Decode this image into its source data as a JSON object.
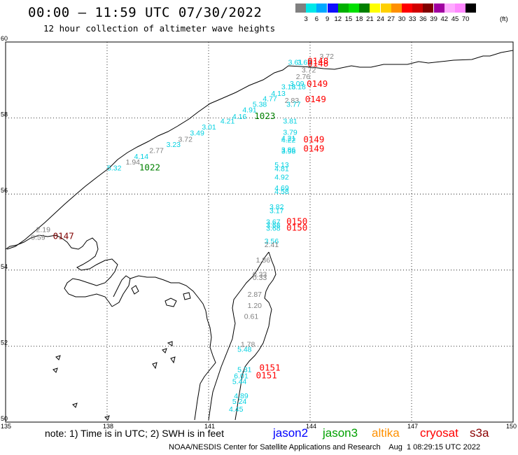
{
  "header": {
    "title": "00:00 – 11:59 UTC 07/30/2022",
    "subtitle": "12 hour collection of altimeter wave heights"
  },
  "legend": {
    "colors": [
      "#808080",
      "#00e8e8",
      "#00a8ff",
      "#1010ff",
      "#00b000",
      "#00e000",
      "#008000",
      "#ffff00",
      "#ffd000",
      "#ff9000",
      "#ff0000",
      "#d00000",
      "#800000",
      "#a000a0",
      "#ffaaff",
      "#ff88ff",
      "#000000"
    ],
    "ticks": [
      "3",
      "6",
      "9",
      "12",
      "15",
      "18",
      "21",
      "24",
      "27",
      "30",
      "33",
      "36",
      "39",
      "42",
      "45",
      "70"
    ],
    "unit": "(ft)"
  },
  "axes": {
    "lat_labels": [
      "60",
      "58",
      "56",
      "54",
      "52",
      "50"
    ],
    "lon_labels": [
      "135",
      "138",
      "141",
      "144",
      "147",
      "150"
    ]
  },
  "observations": [
    {
      "text": "3.72",
      "color": "#808080",
      "lon": 144.28,
      "lat": 59.56
    },
    {
      "text": "3.61",
      "color": "#00d0e0",
      "lon": 143.35,
      "lat": 59.4
    },
    {
      "text": "3.69",
      "color": "#00d0e0",
      "lon": 143.62,
      "lat": 59.4
    },
    {
      "text": "0148",
      "color": "#ff0000",
      "lon": 143.92,
      "lat": 59.42
    },
    {
      "text": "0148",
      "color": "#ff0000",
      "lon": 143.92,
      "lat": 59.36
    },
    {
      "text": "3.72",
      "color": "#808080",
      "lon": 143.75,
      "lat": 59.2
    },
    {
      "text": "2.76",
      "color": "#808080",
      "lon": 143.58,
      "lat": 59.02
    },
    {
      "text": "3.09",
      "color": "#00d0e0",
      "lon": 143.4,
      "lat": 58.84
    },
    {
      "text": "3.18",
      "color": "#00d0e0",
      "lon": 143.15,
      "lat": 58.76
    },
    {
      "text": "3.18",
      "color": "#00d0e0",
      "lon": 143.45,
      "lat": 58.76
    },
    {
      "text": "0149",
      "color": "#ff0000",
      "lon": 143.9,
      "lat": 58.82
    },
    {
      "text": "4.13",
      "color": "#00d0e0",
      "lon": 142.85,
      "lat": 58.58
    },
    {
      "text": "4.77",
      "color": "#00d0e0",
      "lon": 142.6,
      "lat": 58.44
    },
    {
      "text": "2.83",
      "color": "#808080",
      "lon": 143.25,
      "lat": 58.4
    },
    {
      "text": "0149",
      "color": "#ff0000",
      "lon": 143.85,
      "lat": 58.42
    },
    {
      "text": "3.77",
      "color": "#00d0e0",
      "lon": 143.3,
      "lat": 58.3
    },
    {
      "text": "5.38",
      "color": "#00d0e0",
      "lon": 142.3,
      "lat": 58.3
    },
    {
      "text": "4.91",
      "color": "#00d0e0",
      "lon": 142.0,
      "lat": 58.15
    },
    {
      "text": "1023",
      "color": "#008000",
      "lon": 142.35,
      "lat": 57.97
    },
    {
      "text": "4.16",
      "color": "#00d0e0",
      "lon": 141.7,
      "lat": 57.97
    },
    {
      "text": "4.21",
      "color": "#00d0e0",
      "lon": 141.35,
      "lat": 57.85
    },
    {
      "text": "3.01",
      "color": "#00d0e0",
      "lon": 140.8,
      "lat": 57.7
    },
    {
      "text": "3.81",
      "color": "#00d0e0",
      "lon": 143.2,
      "lat": 57.85
    },
    {
      "text": "3.49",
      "color": "#00d0e0",
      "lon": 140.45,
      "lat": 57.54
    },
    {
      "text": "3.79",
      "color": "#00d0e0",
      "lon": 143.2,
      "lat": 57.56
    },
    {
      "text": "3.72",
      "color": "#808080",
      "lon": 140.1,
      "lat": 57.38
    },
    {
      "text": "4.21",
      "color": "#00d0e0",
      "lon": 143.15,
      "lat": 57.4
    },
    {
      "text": "4.22",
      "color": "#00d0e0",
      "lon": 143.15,
      "lat": 57.36
    },
    {
      "text": "0149",
      "color": "#ff0000",
      "lon": 143.8,
      "lat": 57.36
    },
    {
      "text": "3.23",
      "color": "#00d0e0",
      "lon": 139.75,
      "lat": 57.24
    },
    {
      "text": "2.77",
      "color": "#808080",
      "lon": 139.25,
      "lat": 57.08
    },
    {
      "text": "3.86",
      "color": "#00d0e0",
      "lon": 143.15,
      "lat": 57.1
    },
    {
      "text": "3.98",
      "color": "#00d0e0",
      "lon": 143.15,
      "lat": 57.06
    },
    {
      "text": "0149",
      "color": "#ff0000",
      "lon": 143.8,
      "lat": 57.12
    },
    {
      "text": "4.14",
      "color": "#00d0e0",
      "lon": 138.8,
      "lat": 56.92
    },
    {
      "text": "1.94",
      "color": "#808080",
      "lon": 138.55,
      "lat": 56.78
    },
    {
      "text": "5.13",
      "color": "#00d0e0",
      "lon": 142.95,
      "lat": 56.7
    },
    {
      "text": "5.32",
      "color": "#00d0e0",
      "lon": 138.0,
      "lat": 56.62
    },
    {
      "text": "1022",
      "color": "#008000",
      "lon": 138.95,
      "lat": 56.62
    },
    {
      "text": "4.81",
      "color": "#00d0e0",
      "lon": 142.95,
      "lat": 56.6
    },
    {
      "text": "4.92",
      "color": "#00d0e0",
      "lon": 142.95,
      "lat": 56.38
    },
    {
      "text": "4.69",
      "color": "#00d0e0",
      "lon": 142.95,
      "lat": 56.1
    },
    {
      "text": "4.58",
      "color": "#00d0e0",
      "lon": 142.95,
      "lat": 56.0
    },
    {
      "text": "3.82",
      "color": "#00d0e0",
      "lon": 142.8,
      "lat": 55.6
    },
    {
      "text": "3.17",
      "color": "#00d0e0",
      "lon": 142.8,
      "lat": 55.5
    },
    {
      "text": "3.67",
      "color": "#00d0e0",
      "lon": 142.7,
      "lat": 55.2
    },
    {
      "text": "3.68",
      "color": "#00d0e0",
      "lon": 142.7,
      "lat": 55.12
    },
    {
      "text": "3.68",
      "color": "#00d0e0",
      "lon": 142.7,
      "lat": 55.04
    },
    {
      "text": "0150",
      "color": "#ff0000",
      "lon": 143.3,
      "lat": 55.2
    },
    {
      "text": "0150",
      "color": "#ff0000",
      "lon": 143.3,
      "lat": 55.04
    },
    {
      "text": "2.19",
      "color": "#808080",
      "lon": 135.9,
      "lat": 55.0
    },
    {
      "text": "0.59",
      "color": "#808080",
      "lon": 135.75,
      "lat": 54.8
    },
    {
      "text": "0147",
      "color": "#800000",
      "lon": 136.4,
      "lat": 54.82
    },
    {
      "text": "3.56",
      "color": "#00d0e0",
      "lon": 142.65,
      "lat": 54.7
    },
    {
      "text": "2.41",
      "color": "#808080",
      "lon": 142.65,
      "lat": 54.6
    },
    {
      "text": "1.86",
      "color": "#808080",
      "lon": 142.4,
      "lat": 54.2
    },
    {
      "text": "0.33",
      "color": "#808080",
      "lon": 142.3,
      "lat": 53.82
    },
    {
      "text": "0.33",
      "color": "#808080",
      "lon": 142.3,
      "lat": 53.74
    },
    {
      "text": "2.87",
      "color": "#808080",
      "lon": 142.15,
      "lat": 53.3
    },
    {
      "text": "1.20",
      "color": "#808080",
      "lon": 142.15,
      "lat": 53.0
    },
    {
      "text": "0.61",
      "color": "#808080",
      "lon": 142.05,
      "lat": 52.72
    },
    {
      "text": "1.78",
      "color": "#808080",
      "lon": 141.95,
      "lat": 51.98
    },
    {
      "text": "5.48",
      "color": "#00d0e0",
      "lon": 141.85,
      "lat": 51.85
    },
    {
      "text": "0151",
      "color": "#ff0000",
      "lon": 142.5,
      "lat": 51.35
    },
    {
      "text": "5.31",
      "color": "#00d0e0",
      "lon": 141.85,
      "lat": 51.32
    },
    {
      "text": "6.01",
      "color": "#00d0e0",
      "lon": 141.75,
      "lat": 51.15
    },
    {
      "text": "0151",
      "color": "#ff0000",
      "lon": 142.4,
      "lat": 51.15
    },
    {
      "text": "5.44",
      "color": "#00d0e0",
      "lon": 141.7,
      "lat": 51.0
    },
    {
      "text": "4.89",
      "color": "#00d0e0",
      "lon": 141.75,
      "lat": 50.63
    },
    {
      "text": "5.24",
      "color": "#00d0e0",
      "lon": 141.7,
      "lat": 50.48
    },
    {
      "text": "4.45",
      "color": "#00d0e0",
      "lon": 141.6,
      "lat": 50.28
    }
  ],
  "footer": {
    "note": "note: 1) Time is in UTC; 2) SWH is in feet",
    "satellites": [
      {
        "name": "jason2",
        "color": "#0000ff"
      },
      {
        "name": "jason3",
        "color": "#00a000"
      },
      {
        "name": "altika",
        "color": "#ff9000"
      },
      {
        "name": "cryosat",
        "color": "#ff0000"
      },
      {
        "name": "s3a",
        "color": "#8b0000"
      }
    ],
    "credit": "NOAA/NESDIS Center for Satellite Applications and Research    Aug  1 08:29:15 UTC 2022"
  }
}
